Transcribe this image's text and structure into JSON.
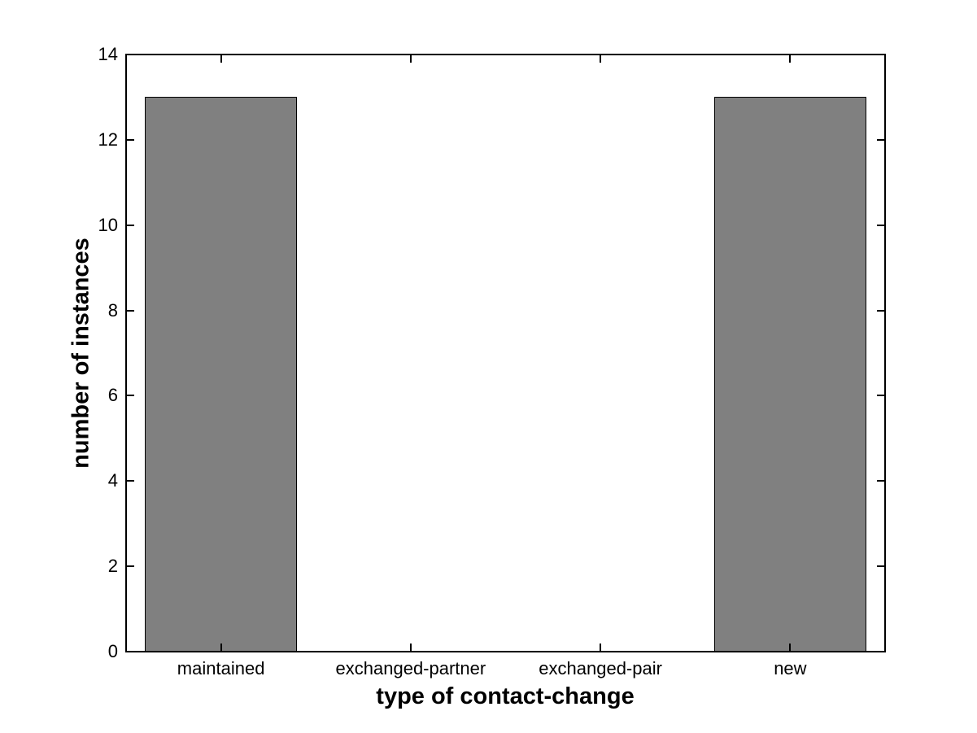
{
  "figure": {
    "background": "#ffffff"
  },
  "chart_data": {
    "type": "bar",
    "categories": [
      "maintained",
      "exchanged-partner",
      "exchanged-pair",
      "new"
    ],
    "values": [
      13,
      0,
      0,
      13
    ],
    "xlabel": "type of contact-change",
    "ylabel": "number of instances",
    "ylim": [
      0,
      14
    ],
    "yticks": [
      0,
      2,
      4,
      6,
      8,
      10,
      12,
      14
    ],
    "grid": false,
    "legend_position": "none",
    "bar_color": "#808080",
    "bar_edge_color": "#000000",
    "axis_color": "#000000",
    "tick_direction": "in"
  }
}
